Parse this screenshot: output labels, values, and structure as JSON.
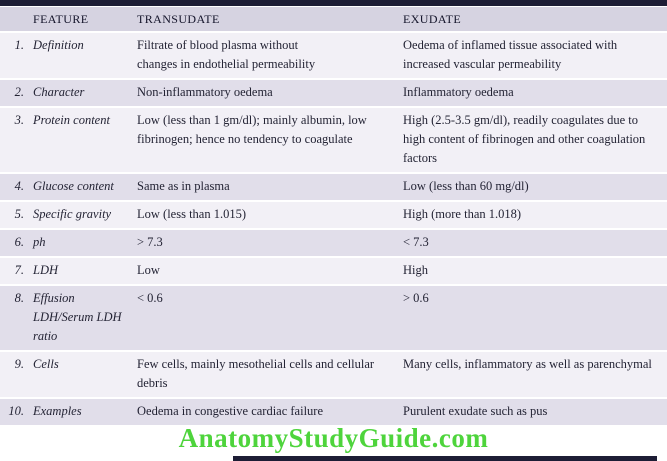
{
  "colors": {
    "top_bar": "#1d1d35",
    "header_bg": "#d6d3e1",
    "header_text": "#14142a",
    "row_odd_bg": "#f2f0f6",
    "row_even_bg": "#e1deea",
    "text": "#232334",
    "footer_green": "#4ed43c"
  },
  "table": {
    "headers": {
      "feature": "FEATURE",
      "transudate": "TRANSUDATE",
      "exudate": "EXUDATE"
    },
    "rows": [
      {
        "num": "1.",
        "feature": "Definition",
        "transudate": "Filtrate of blood plasma without\nchanges in endothelial permeability",
        "exudate": "Oedema of inflamed tissue associated with\nincreased vascular permeability"
      },
      {
        "num": "2.",
        "feature": "Character",
        "transudate": "Non-inflammatory oedema",
        "exudate": "Inflammatory oedema"
      },
      {
        "num": "3.",
        "feature": "Protein content",
        "transudate": "Low (less than 1 gm/dl); mainly albumin, low\nfibrinogen; hence no tendency to coagulate",
        "exudate": "High (2.5-3.5 gm/dl), readily coagulates due to\nhigh content of fibrinogen and other coagulation\nfactors"
      },
      {
        "num": "4.",
        "feature": "Glucose content",
        "transudate": "Same as in plasma",
        "exudate": "Low (less than 60 mg/dl)"
      },
      {
        "num": "5.",
        "feature": "Specific gravity",
        "transudate": "Low (less than 1.015)",
        "exudate": "High (more than 1.018)"
      },
      {
        "num": "6.",
        "feature": "ph",
        "transudate": "> 7.3",
        "exudate": "< 7.3"
      },
      {
        "num": "7.",
        "feature": "LDH",
        "transudate": "Low",
        "exudate": "High"
      },
      {
        "num": "8.",
        "feature": "Effusion\nLDH/Serum LDH\nratio",
        "transudate": "< 0.6",
        "exudate": "> 0.6"
      },
      {
        "num": "9.",
        "feature": "Cells",
        "transudate": "Few cells, mainly mesothelial cells and cellular\ndebris",
        "exudate": "Many cells, inflammatory as well as parenchymal"
      },
      {
        "num": "10.",
        "feature": "Examples",
        "transudate": "Oedema in congestive cardiac failure",
        "exudate": "Purulent exudate such as pus"
      }
    ]
  },
  "footer": {
    "site": "AnatomyStudyGuide.com"
  }
}
